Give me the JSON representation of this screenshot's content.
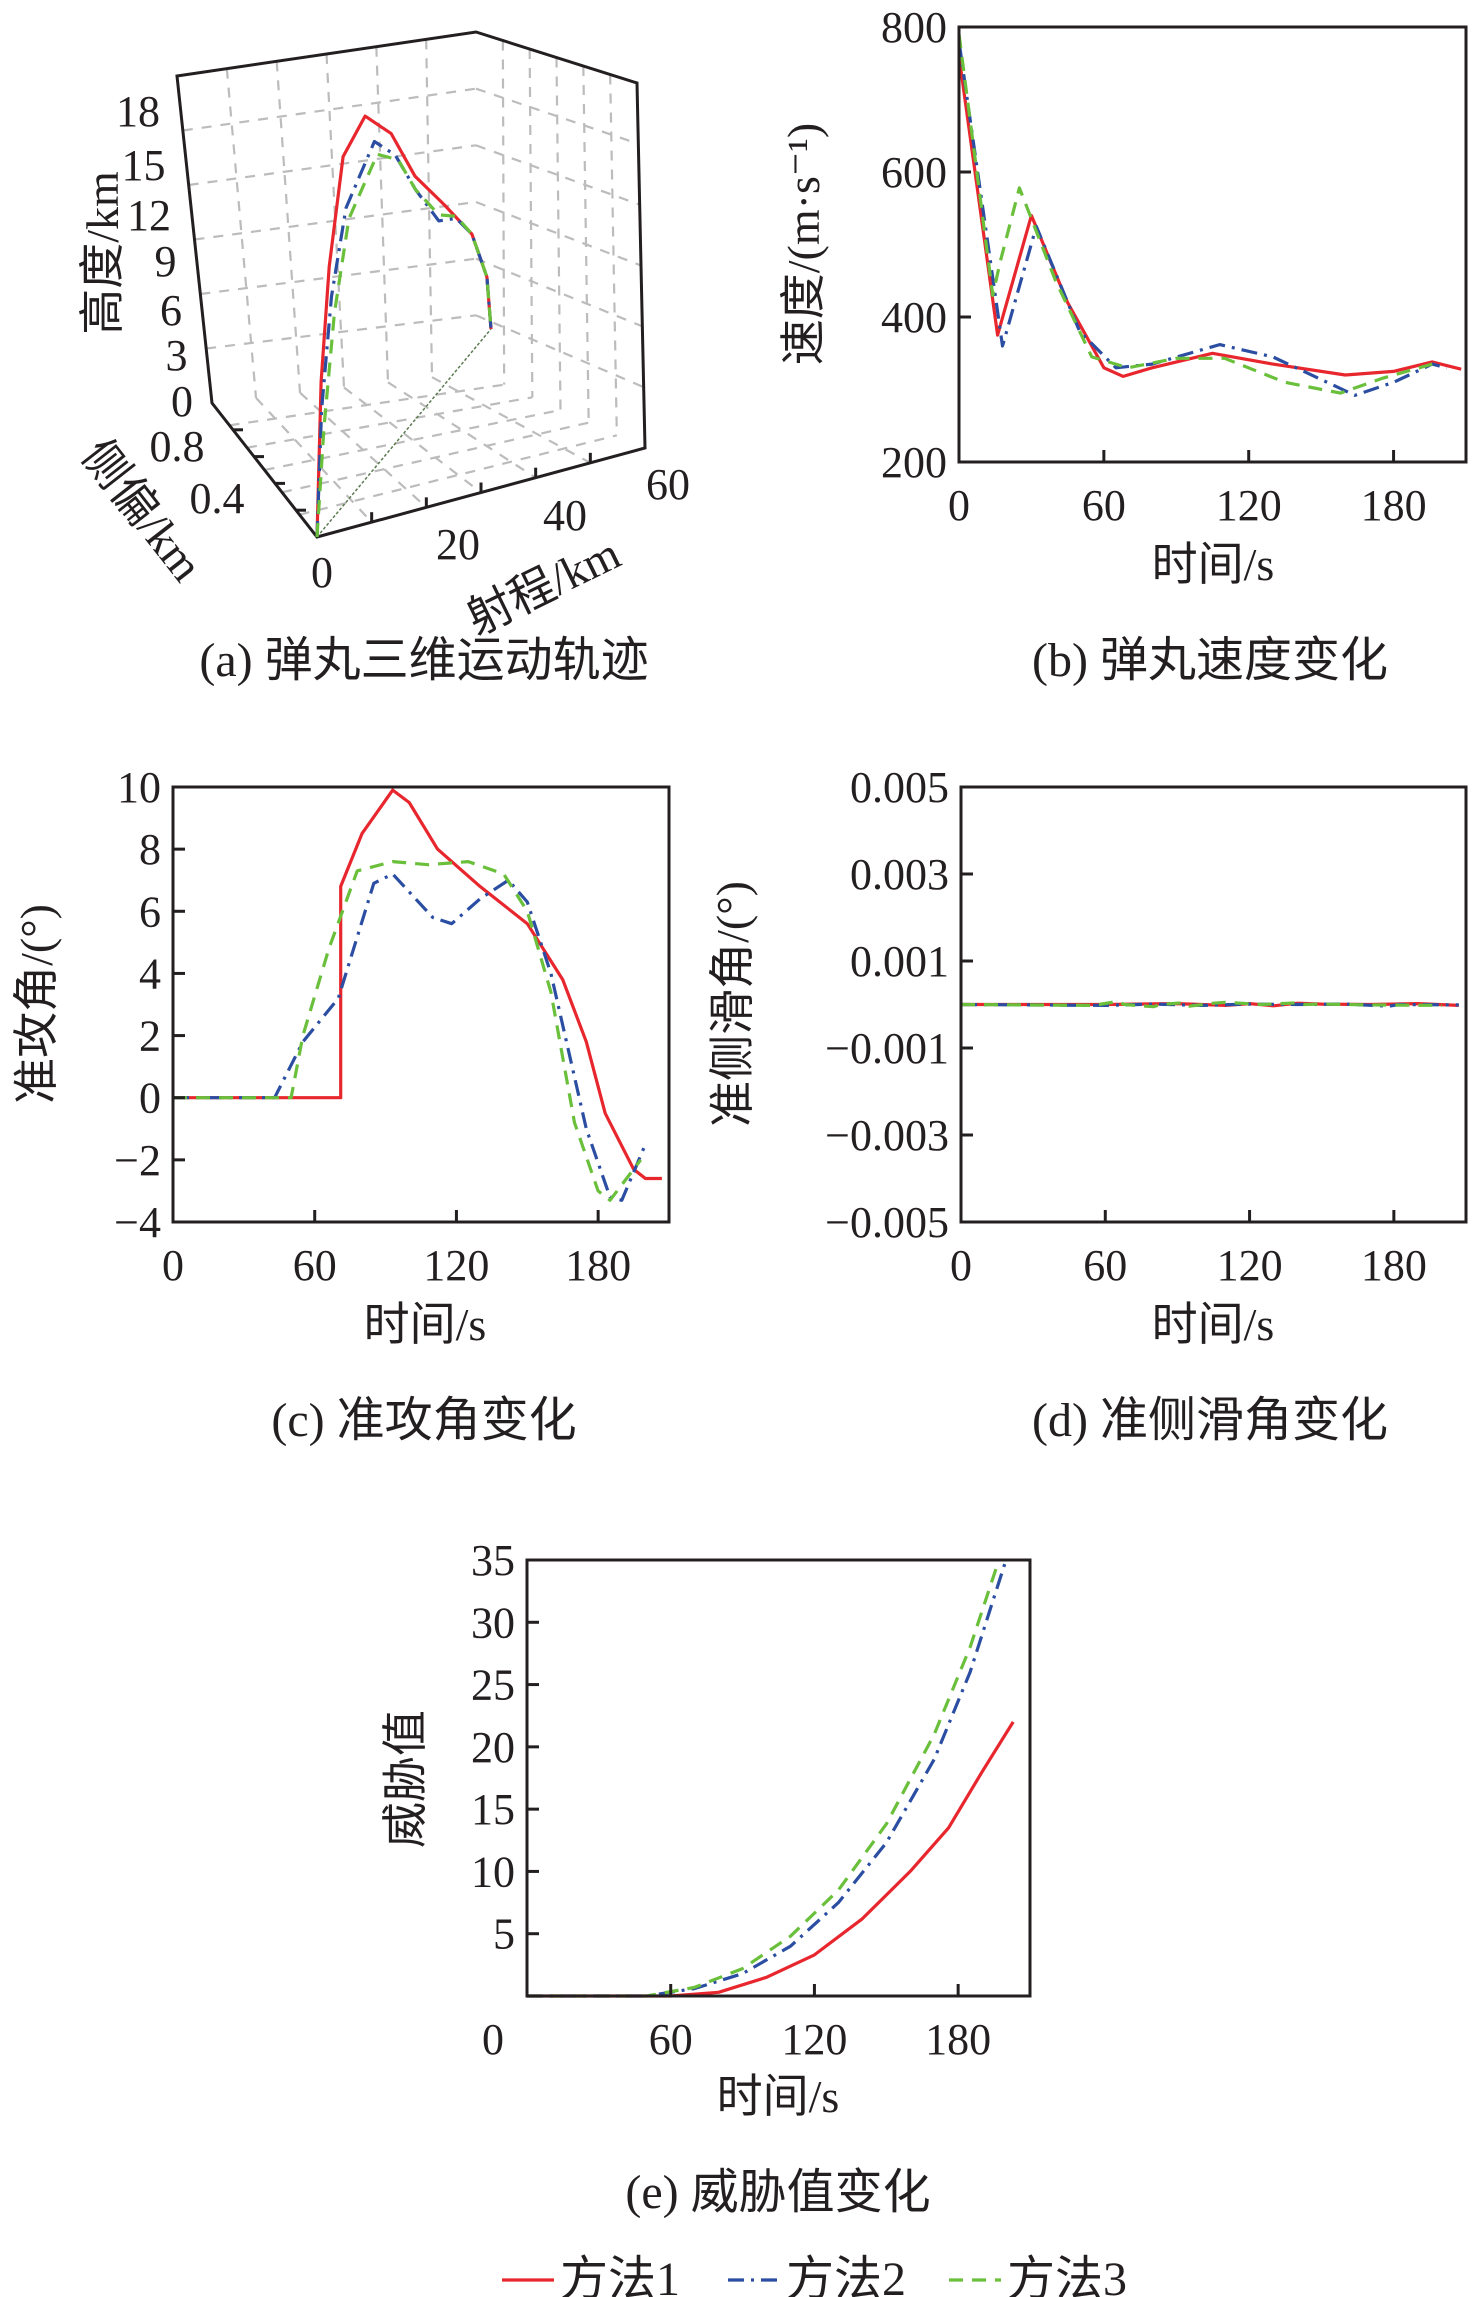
{
  "legend": [
    {
      "label": "方法1",
      "color": "#e8262d",
      "style": "solid"
    },
    {
      "label": "方法2",
      "color": "#2b4ea2",
      "style": "dashdot"
    },
    {
      "label": "方法3",
      "color": "#6abf3b",
      "style": "dashed"
    }
  ],
  "chart_data": [
    {
      "id": "a",
      "type": "line3d",
      "title": "(a) 弹丸三维运动轨迹",
      "xlabel": "射程/km",
      "ylabel": "侧偏/km",
      "zlabel": "高度/km",
      "xticks": [
        "0",
        "20",
        "40",
        "60"
      ],
      "yticks": [
        "0.8",
        "0.4"
      ],
      "zticks": [
        "18",
        "15",
        "12",
        "9",
        "6",
        "3",
        "0"
      ],
      "grid": true,
      "series": [
        {
          "name": "方法1",
          "range": [
            0,
            0.7,
            2.1,
            4.5,
            8.3,
            12.8,
            16.9,
            21.9,
            26.7,
            29.3,
            30
          ],
          "altitude": [
            0,
            7.4,
            12.6,
            17.2,
            17.9,
            15.5,
            12,
            8.9,
            5.8,
            2.8,
            0
          ]
        },
        {
          "name": "方法2",
          "range": [
            0,
            0.8,
            2.5,
            5,
            9.9,
            13.5,
            17,
            21,
            24,
            26.7,
            29.3,
            30
          ],
          "altitude": [
            0,
            6,
            11,
            14.5,
            16.1,
            14.2,
            11.3,
            8.4,
            7.5,
            5.8,
            2.8,
            0
          ]
        },
        {
          "name": "方法3",
          "range": [
            0,
            1.2,
            3,
            5.5,
            10.4,
            14,
            17,
            21,
            24,
            26.7,
            29.3,
            30
          ],
          "altitude": [
            0,
            5,
            10,
            13.8,
            15.3,
            13.8,
            11.3,
            8.7,
            7.6,
            5.8,
            2.8,
            0
          ]
        }
      ]
    },
    {
      "id": "b",
      "type": "line",
      "title": "(b) 弹丸速度变化",
      "xlabel": "时间/s",
      "ylabel": "速度/(m·s⁻¹)",
      "xlim": [
        0,
        210
      ],
      "ylim": [
        200,
        800
      ],
      "xticks": [
        0,
        60,
        120,
        180
      ],
      "yticks": [
        200,
        400,
        600,
        800
      ],
      "xtick_labels": [
        "0",
        "60",
        "120",
        "180"
      ],
      "ytick_labels": [
        "200",
        "400",
        "600",
        "800"
      ],
      "series": [
        {
          "name": "方法1",
          "x": [
            0,
            16,
            30,
            45,
            60,
            68,
            80,
            105,
            130,
            160,
            180,
            196,
            208
          ],
          "y": [
            760,
            375,
            540,
            420,
            330,
            318,
            330,
            350,
            335,
            320,
            325,
            338,
            328
          ]
        },
        {
          "name": "方法2",
          "x": [
            0,
            18,
            32,
            50,
            65,
            80,
            108,
            130,
            164,
            180,
            196,
            202
          ],
          "y": [
            780,
            360,
            525,
            380,
            330,
            335,
            362,
            345,
            292,
            310,
            335,
            330
          ]
        },
        {
          "name": "方法3",
          "x": [
            0,
            14,
            17,
            25,
            40,
            55,
            70,
            90,
            110,
            135,
            158,
            175,
            196
          ],
          "y": [
            790,
            430,
            475,
            578,
            450,
            345,
            330,
            343,
            343,
            310,
            295,
            315,
            335
          ]
        }
      ]
    },
    {
      "id": "c",
      "type": "line",
      "title": "(c) 准攻角变化",
      "xlabel": "时间/s",
      "ylabel": "准攻角/(°)",
      "xlim": [
        0,
        210
      ],
      "ylim": [
        -4,
        10
      ],
      "xticks": [
        0,
        60,
        120,
        180
      ],
      "yticks": [
        -4,
        -2,
        0,
        2,
        4,
        6,
        8,
        10
      ],
      "xtick_labels": [
        "0",
        "60",
        "120",
        "180"
      ],
      "ytick_labels": [
        "−4",
        "−2",
        "0",
        "2",
        "4",
        "6",
        "8",
        "10"
      ],
      "series": [
        {
          "name": "方法1",
          "x": [
            0,
            71,
            71,
            80,
            93,
            100,
            112,
            130,
            150,
            165,
            175,
            183,
            195,
            200,
            207
          ],
          "y": [
            0,
            0,
            6.8,
            8.5,
            9.9,
            9.5,
            8,
            6.8,
            5.6,
            3.8,
            1.8,
            -0.5,
            -2.3,
            -2.6,
            -2.6
          ]
        },
        {
          "name": "方法2",
          "x": [
            0,
            43,
            55,
            70,
            85,
            93,
            110,
            118,
            130,
            142,
            150,
            160,
            175,
            185,
            190,
            200
          ],
          "y": [
            0,
            0,
            1.8,
            3.2,
            6.9,
            7.2,
            5.8,
            5.6,
            6.4,
            7,
            6.3,
            4,
            -1,
            -3.2,
            -3.3,
            -1.5
          ]
        },
        {
          "name": "方法3",
          "x": [
            0,
            50,
            55,
            66,
            78,
            93,
            108,
            125,
            140,
            150,
            160,
            170,
            180,
            185,
            195,
            198
          ],
          "y": [
            0,
            0,
            2,
            4.8,
            7.3,
            7.6,
            7.5,
            7.6,
            7.2,
            6,
            3.4,
            -0.8,
            -3,
            -3.3,
            -2.3,
            -2
          ]
        }
      ]
    },
    {
      "id": "d",
      "type": "line",
      "title": "(d) 准侧滑角变化",
      "xlabel": "时间/s",
      "ylabel": "准侧滑角/(°)",
      "xlim": [
        0,
        210
      ],
      "ylim": [
        -0.005,
        0.005
      ],
      "xticks": [
        0,
        60,
        120,
        180
      ],
      "yticks": [
        -0.005,
        -0.003,
        -0.001,
        0.001,
        0.003,
        0.005
      ],
      "xtick_labels": [
        "0",
        "60",
        "120",
        "180"
      ],
      "ytick_labels": [
        "−0.005",
        "−0.003",
        "−0.001",
        "0.001",
        "0.003",
        "0.005"
      ],
      "series": [
        {
          "name": "方法1",
          "x": [
            0,
            60,
            90,
            110,
            120,
            130,
            140,
            150,
            170,
            190,
            207
          ],
          "y": [
            0,
            0,
            2e-05,
            -2e-05,
            2e-05,
            -3e-05,
            3e-05,
            1e-05,
            0,
            2e-05,
            -2e-05
          ]
        },
        {
          "name": "方法2",
          "x": [
            0,
            60,
            80,
            100,
            120,
            140,
            160,
            178,
            182,
            207
          ],
          "y": [
            0,
            -2e-05,
            1e-05,
            -2e-05,
            1e-05,
            0,
            1e-05,
            -4e-05,
            0,
            -1e-05
          ]
        },
        {
          "name": "方法3",
          "x": [
            0,
            55,
            65,
            68,
            80,
            83,
            92,
            95,
            105,
            110,
            125,
            140,
            143,
            150,
            170,
            200
          ],
          "y": [
            0,
            -2e-05,
            7e-05,
            0,
            -5e-05,
            0,
            4e-05,
            -4e-05,
            3e-05,
            5e-05,
            0,
            4e-05,
            0,
            1e-05,
            -1e-05,
            -2e-05
          ]
        }
      ]
    },
    {
      "id": "e",
      "type": "line",
      "title": "(e) 威胁值变化",
      "xlabel": "时间/s",
      "ylabel": "威胁值",
      "xlim": [
        0,
        210
      ],
      "ylim": [
        0,
        35
      ],
      "xticks": [
        0,
        60,
        120,
        180
      ],
      "yticks": [
        5,
        10,
        15,
        20,
        25,
        30,
        35
      ],
      "xtick_labels": [
        "0",
        "60",
        "120",
        "180"
      ],
      "ytick_labels": [
        "5",
        "10",
        "15",
        "20",
        "25",
        "30",
        "35"
      ],
      "series": [
        {
          "name": "方法1",
          "x": [
            0,
            60,
            80,
            100,
            120,
            140,
            160,
            176,
            190,
            203
          ],
          "y": [
            0,
            0,
            0.3,
            1.5,
            3.3,
            6.2,
            10,
            13.5,
            18,
            22
          ]
        },
        {
          "name": "方法2",
          "x": [
            0,
            50,
            70,
            90,
            110,
            130,
            150,
            170,
            185,
            200
          ],
          "y": [
            0,
            0,
            0.6,
            1.8,
            4,
            7.5,
            12.3,
            19,
            26,
            35
          ]
        },
        {
          "name": "方法3",
          "x": [
            0,
            50,
            70,
            90,
            110,
            130,
            150,
            170,
            185,
            197
          ],
          "y": [
            0,
            0,
            0.7,
            2.2,
            4.8,
            8.5,
            13.8,
            21,
            28,
            35
          ]
        }
      ]
    }
  ]
}
